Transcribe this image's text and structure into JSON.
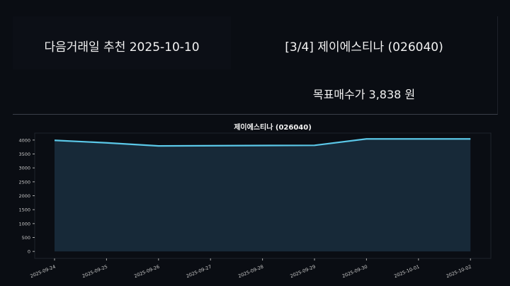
{
  "header": {
    "next_trade": "다음거래일 추천 2025-10-10",
    "stock_title": "[3/4] 제이에스티나 (026040)",
    "target_price": "목표매수가 3,838 원"
  },
  "colors": {
    "line": "#5bc8e8",
    "fill": "#172938",
    "background": "#0a0d13"
  },
  "chart_data": {
    "type": "area",
    "title": "제이에스티나 (026040)",
    "xlabel": "",
    "ylabel": "",
    "x": [
      "2025-09-24",
      "2025-09-25",
      "2025-09-26",
      "2025-09-29",
      "2025-09-30",
      "2025-10-01",
      "2025-10-02"
    ],
    "values": [
      3990,
      3900,
      3790,
      3810,
      4040,
      4040,
      4040
    ],
    "xticks": [
      "2025-09-24",
      "2025-09-25",
      "2025-09-26",
      "2025-09-27",
      "2025-09-28",
      "2025-09-29",
      "2025-09-30",
      "2025-10-01",
      "2025-10-02"
    ],
    "yticks": [
      0,
      500,
      1000,
      1500,
      2000,
      2500,
      3000,
      3500,
      4000
    ],
    "ylim": [
      -250,
      4250
    ],
    "grid": false
  }
}
